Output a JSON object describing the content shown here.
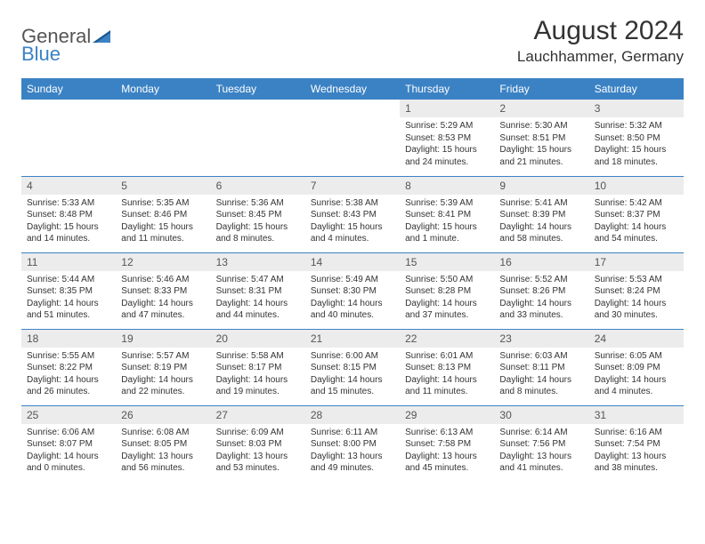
{
  "brand": {
    "name_part1": "General",
    "name_part2": "Blue"
  },
  "header": {
    "month": "August 2024",
    "location": "Lauchhammer, Germany"
  },
  "days": [
    "Sunday",
    "Monday",
    "Tuesday",
    "Wednesday",
    "Thursday",
    "Friday",
    "Saturday"
  ],
  "colors": {
    "header_bg": "#3b82c4",
    "header_text": "#ffffff",
    "daynum_bg": "#ececec",
    "border": "#3b82c4",
    "text": "#333333"
  },
  "typography": {
    "month_fontsize": 30,
    "location_fontsize": 17,
    "dayheader_fontsize": 12,
    "daynum_fontsize": 12,
    "content_fontsize": 10
  },
  "weeks": [
    [
      null,
      null,
      null,
      null,
      {
        "n": "1",
        "sunrise": "5:29 AM",
        "sunset": "8:53 PM",
        "daylight": "15 hours and 24 minutes."
      },
      {
        "n": "2",
        "sunrise": "5:30 AM",
        "sunset": "8:51 PM",
        "daylight": "15 hours and 21 minutes."
      },
      {
        "n": "3",
        "sunrise": "5:32 AM",
        "sunset": "8:50 PM",
        "daylight": "15 hours and 18 minutes."
      }
    ],
    [
      {
        "n": "4",
        "sunrise": "5:33 AM",
        "sunset": "8:48 PM",
        "daylight": "15 hours and 14 minutes."
      },
      {
        "n": "5",
        "sunrise": "5:35 AM",
        "sunset": "8:46 PM",
        "daylight": "15 hours and 11 minutes."
      },
      {
        "n": "6",
        "sunrise": "5:36 AM",
        "sunset": "8:45 PM",
        "daylight": "15 hours and 8 minutes."
      },
      {
        "n": "7",
        "sunrise": "5:38 AM",
        "sunset": "8:43 PM",
        "daylight": "15 hours and 4 minutes."
      },
      {
        "n": "8",
        "sunrise": "5:39 AM",
        "sunset": "8:41 PM",
        "daylight": "15 hours and 1 minute."
      },
      {
        "n": "9",
        "sunrise": "5:41 AM",
        "sunset": "8:39 PM",
        "daylight": "14 hours and 58 minutes."
      },
      {
        "n": "10",
        "sunrise": "5:42 AM",
        "sunset": "8:37 PM",
        "daylight": "14 hours and 54 minutes."
      }
    ],
    [
      {
        "n": "11",
        "sunrise": "5:44 AM",
        "sunset": "8:35 PM",
        "daylight": "14 hours and 51 minutes."
      },
      {
        "n": "12",
        "sunrise": "5:46 AM",
        "sunset": "8:33 PM",
        "daylight": "14 hours and 47 minutes."
      },
      {
        "n": "13",
        "sunrise": "5:47 AM",
        "sunset": "8:31 PM",
        "daylight": "14 hours and 44 minutes."
      },
      {
        "n": "14",
        "sunrise": "5:49 AM",
        "sunset": "8:30 PM",
        "daylight": "14 hours and 40 minutes."
      },
      {
        "n": "15",
        "sunrise": "5:50 AM",
        "sunset": "8:28 PM",
        "daylight": "14 hours and 37 minutes."
      },
      {
        "n": "16",
        "sunrise": "5:52 AM",
        "sunset": "8:26 PM",
        "daylight": "14 hours and 33 minutes."
      },
      {
        "n": "17",
        "sunrise": "5:53 AM",
        "sunset": "8:24 PM",
        "daylight": "14 hours and 30 minutes."
      }
    ],
    [
      {
        "n": "18",
        "sunrise": "5:55 AM",
        "sunset": "8:22 PM",
        "daylight": "14 hours and 26 minutes."
      },
      {
        "n": "19",
        "sunrise": "5:57 AM",
        "sunset": "8:19 PM",
        "daylight": "14 hours and 22 minutes."
      },
      {
        "n": "20",
        "sunrise": "5:58 AM",
        "sunset": "8:17 PM",
        "daylight": "14 hours and 19 minutes."
      },
      {
        "n": "21",
        "sunrise": "6:00 AM",
        "sunset": "8:15 PM",
        "daylight": "14 hours and 15 minutes."
      },
      {
        "n": "22",
        "sunrise": "6:01 AM",
        "sunset": "8:13 PM",
        "daylight": "14 hours and 11 minutes."
      },
      {
        "n": "23",
        "sunrise": "6:03 AM",
        "sunset": "8:11 PM",
        "daylight": "14 hours and 8 minutes."
      },
      {
        "n": "24",
        "sunrise": "6:05 AM",
        "sunset": "8:09 PM",
        "daylight": "14 hours and 4 minutes."
      }
    ],
    [
      {
        "n": "25",
        "sunrise": "6:06 AM",
        "sunset": "8:07 PM",
        "daylight": "14 hours and 0 minutes."
      },
      {
        "n": "26",
        "sunrise": "6:08 AM",
        "sunset": "8:05 PM",
        "daylight": "13 hours and 56 minutes."
      },
      {
        "n": "27",
        "sunrise": "6:09 AM",
        "sunset": "8:03 PM",
        "daylight": "13 hours and 53 minutes."
      },
      {
        "n": "28",
        "sunrise": "6:11 AM",
        "sunset": "8:00 PM",
        "daylight": "13 hours and 49 minutes."
      },
      {
        "n": "29",
        "sunrise": "6:13 AM",
        "sunset": "7:58 PM",
        "daylight": "13 hours and 45 minutes."
      },
      {
        "n": "30",
        "sunrise": "6:14 AM",
        "sunset": "7:56 PM",
        "daylight": "13 hours and 41 minutes."
      },
      {
        "n": "31",
        "sunrise": "6:16 AM",
        "sunset": "7:54 PM",
        "daylight": "13 hours and 38 minutes."
      }
    ]
  ],
  "labels": {
    "sunrise": "Sunrise:",
    "sunset": "Sunset:",
    "daylight": "Daylight:"
  }
}
